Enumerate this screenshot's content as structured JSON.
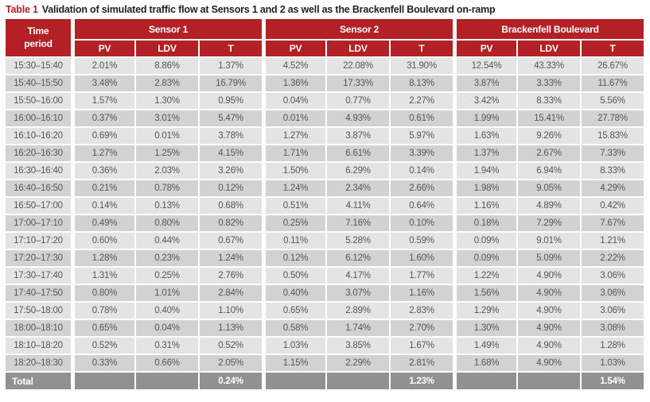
{
  "caption": {
    "label": "Table 1",
    "text": "Validation of simulated traffic flow at Sensors 1 and 2 as well as the Brackenfell Boulevard on-ramp"
  },
  "colors": {
    "header_red": "#b32025",
    "row_light": "#e4e4e4",
    "row_dark": "#d2d2d2",
    "total_gray": "#919191",
    "cell_text": "#555659",
    "header_text": "#ffffff"
  },
  "table": {
    "corner_header": "Time period",
    "groups": [
      "Sensor 1",
      "Sensor 2",
      "Brackenfell Boulevard"
    ],
    "sub_headers": [
      "PV",
      "LDV",
      "T"
    ],
    "rows": [
      {
        "period": "15:30–15:40",
        "values": [
          "2.01%",
          "8.86%",
          "1.37%",
          "4.52%",
          "22.08%",
          "31.90%",
          "12.54%",
          "43.33%",
          "26.67%"
        ]
      },
      {
        "period": "15:40–15:50",
        "values": [
          "3.48%",
          "2.83%",
          "16.79%",
          "1.36%",
          "17.33%",
          "8.13%",
          "3.87%",
          "3.33%",
          "11.67%"
        ]
      },
      {
        "period": "15:50–16:00",
        "values": [
          "1.57%",
          "1.30%",
          "0.95%",
          "0.04%",
          "0.77%",
          "2.27%",
          "3.42%",
          "8.33%",
          "5.56%"
        ]
      },
      {
        "period": "16:00–16:10",
        "values": [
          "0.37%",
          "3.01%",
          "5.47%",
          "0.01%",
          "4.93%",
          "0.61%",
          "1.99%",
          "15.41%",
          "27.78%"
        ]
      },
      {
        "period": "16:10–16:20",
        "values": [
          "0.69%",
          "0.01%",
          "3.78%",
          "1.27%",
          "3.87%",
          "5.97%",
          "1.63%",
          "9.26%",
          "15.83%"
        ]
      },
      {
        "period": "16:20–16:30",
        "values": [
          "1.27%",
          "1.25%",
          "4.15%",
          "1.71%",
          "6.61%",
          "3.39%",
          "1.37%",
          "2.67%",
          "7.33%"
        ]
      },
      {
        "period": "16:30–16:40",
        "values": [
          "0.36%",
          "2.03%",
          "3.26%",
          "1.50%",
          "6.29%",
          "0.14%",
          "1.94%",
          "6.94%",
          "8.33%"
        ]
      },
      {
        "period": "16:40–16:50",
        "values": [
          "0.21%",
          "0.78%",
          "0.12%",
          "1.24%",
          "2.34%",
          "2.66%",
          "1.98%",
          "9.05%",
          "4.29%"
        ]
      },
      {
        "period": "16:50–17:00",
        "values": [
          "0.14%",
          "0.13%",
          "0.68%",
          "0.51%",
          "4.11%",
          "0.64%",
          "1.16%",
          "4.89%",
          "0.42%"
        ]
      },
      {
        "period": "17:00–17:10",
        "values": [
          "0.49%",
          "0.80%",
          "0.82%",
          "0.25%",
          "7.16%",
          "0.10%",
          "0.18%",
          "7.29%",
          "7.67%"
        ]
      },
      {
        "period": "17:10–17:20",
        "values": [
          "0.60%",
          "0.44%",
          "0.67%",
          "0.11%",
          "5.28%",
          "0.59%",
          "0.09%",
          "9.01%",
          "1.21%"
        ]
      },
      {
        "period": "17:20–17:30",
        "values": [
          "1.28%",
          "0.23%",
          "1.24%",
          "0.12%",
          "6.12%",
          "1.60%",
          "0.09%",
          "5.09%",
          "2.22%"
        ]
      },
      {
        "period": "17:30–17:40",
        "values": [
          "1.31%",
          "0.25%",
          "2.76%",
          "0.50%",
          "4.17%",
          "1.77%",
          "1.22%",
          "4.90%",
          "3.06%"
        ]
      },
      {
        "period": "17:40–17:50",
        "values": [
          "0.80%",
          "1.01%",
          "2.84%",
          "0.40%",
          "3.07%",
          "1.16%",
          "1.56%",
          "4.90%",
          "3.06%"
        ]
      },
      {
        "period": "17:50–18:00",
        "values": [
          "0.78%",
          "0.40%",
          "1.10%",
          "0.65%",
          "2.89%",
          "2.83%",
          "1.29%",
          "4.90%",
          "3.06%"
        ]
      },
      {
        "period": "18:00–18:10",
        "values": [
          "0.65%",
          "0.04%",
          "1.13%",
          "0.58%",
          "1.74%",
          "2.70%",
          "1.30%",
          "4.90%",
          "3.08%"
        ]
      },
      {
        "period": "18:10–18:20",
        "values": [
          "0.52%",
          "0.31%",
          "0.52%",
          "1.03%",
          "3.85%",
          "1.67%",
          "1.49%",
          "4.90%",
          "1.28%"
        ]
      },
      {
        "period": "18:20–18:30",
        "values": [
          "0.33%",
          "0.66%",
          "2.05%",
          "1.15%",
          "2.29%",
          "2.81%",
          "1.68%",
          "4.90%",
          "1.03%"
        ]
      }
    ],
    "total": {
      "label": "Total",
      "values": [
        "",
        "",
        "0.24%",
        "",
        "",
        "1.23%",
        "",
        "",
        "1.54%"
      ]
    }
  }
}
